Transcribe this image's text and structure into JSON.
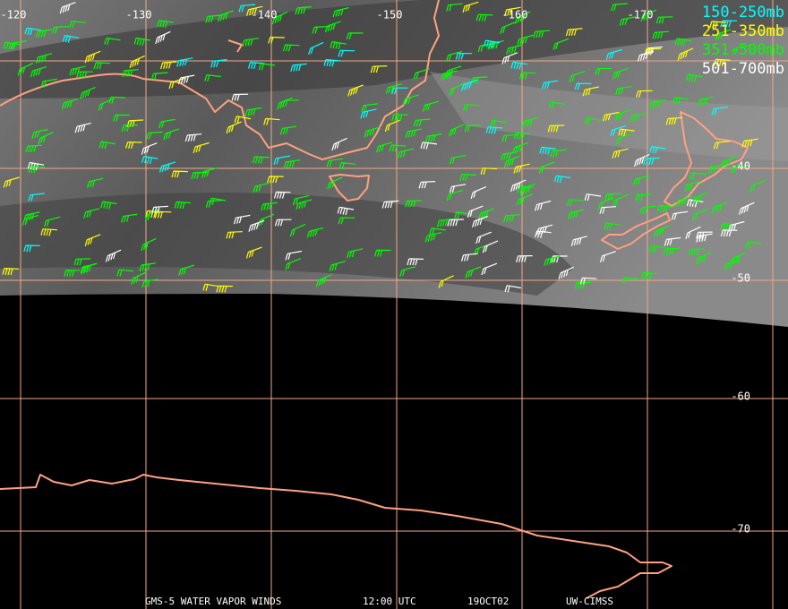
{
  "map": {
    "longitude_labels": [
      -120,
      -130,
      -140,
      -150,
      -160,
      -170
    ],
    "latitude_labels": [
      -40,
      -50,
      -60,
      -70
    ],
    "legend": [
      {
        "label": "150-250mb",
        "color": "#00ffff"
      },
      {
        "label": "251-350mb",
        "color": "#ffff00"
      },
      {
        "label": "351-500mb",
        "color": "#00ff00"
      },
      {
        "label": "501-700mb",
        "color": "#ffffff"
      }
    ],
    "footer": [
      "GMS-5 WATER VAPOR WINDS",
      "12:00 UTC",
      "19OCT02",
      "UW-CIMSS"
    ]
  }
}
